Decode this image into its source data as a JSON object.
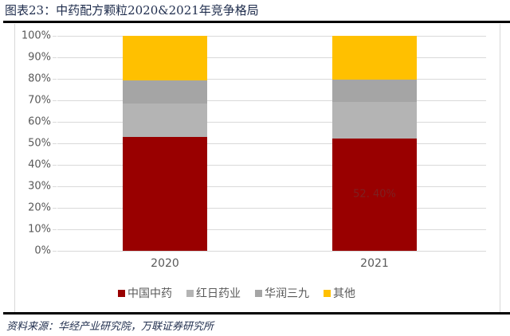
{
  "title": "图表23：中药配方颗粒2020&2021年竞争格局",
  "source": "资料来源：华经产业研究院，万联证券研究所",
  "chart_data": {
    "type": "bar",
    "stacked": true,
    "percent": true,
    "title": "中药配方颗粒2020&2021年竞争格局",
    "xlabel": "",
    "ylabel": "",
    "ylim": [
      0,
      100
    ],
    "yticks": [
      "0%",
      "10%",
      "20%",
      "30%",
      "40%",
      "50%",
      "60%",
      "70%",
      "80%",
      "90%",
      "100%"
    ],
    "categories": [
      "2020",
      "2021"
    ],
    "series": [
      {
        "name": "中国中药",
        "color": "#990000",
        "values": [
          52.9,
          52.4
        ]
      },
      {
        "name": "红日药业",
        "color": "#b4b4b4",
        "values": [
          15.6,
          16.9
        ]
      },
      {
        "name": "华润三九",
        "color": "#a5a5a5",
        "values": [
          10.8,
          10.3
        ]
      },
      {
        "name": "其他",
        "color": "#ffc000",
        "values": [
          20.7,
          20.4
        ]
      }
    ],
    "annotations": [
      {
        "category": "2021",
        "series": "中国中药",
        "text": "52. 40%"
      }
    ],
    "legend_position": "bottom",
    "grid": true
  }
}
